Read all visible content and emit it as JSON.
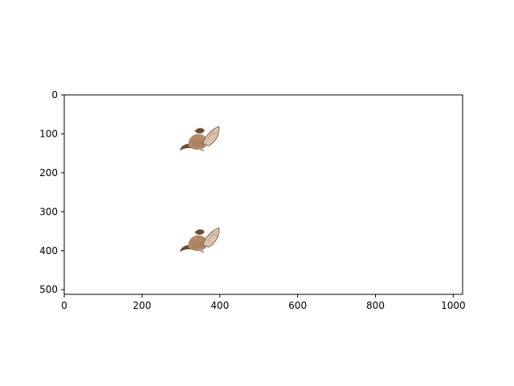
{
  "chart_data": {
    "type": "image",
    "title": "",
    "xlabel": "",
    "ylabel": "",
    "xlim": [
      0,
      1024
    ],
    "ylim": [
      512,
      0
    ],
    "y_axis_inverted": true,
    "grid": false,
    "x_ticks": [
      0,
      200,
      400,
      600,
      800,
      1000
    ],
    "x_tick_labels": [
      "0",
      "200",
      "400",
      "600",
      "800",
      "1000"
    ],
    "y_ticks": [
      0,
      100,
      200,
      300,
      400,
      500
    ],
    "y_tick_labels": [
      "0",
      "100",
      "200",
      "300",
      "400",
      "500"
    ],
    "images": [
      {
        "name": "bird-image-1",
        "x": [
          296,
          400
        ],
        "y": [
          75,
          145
        ]
      },
      {
        "name": "bird-image-2",
        "x": [
          296,
          400
        ],
        "y": [
          335,
          405
        ]
      }
    ]
  },
  "colors": {
    "bird_body": "#b5896a",
    "bird_dark": "#6b4a36",
    "bird_light": "#d9c3ad",
    "bird_gray": "#a7a7ad"
  }
}
